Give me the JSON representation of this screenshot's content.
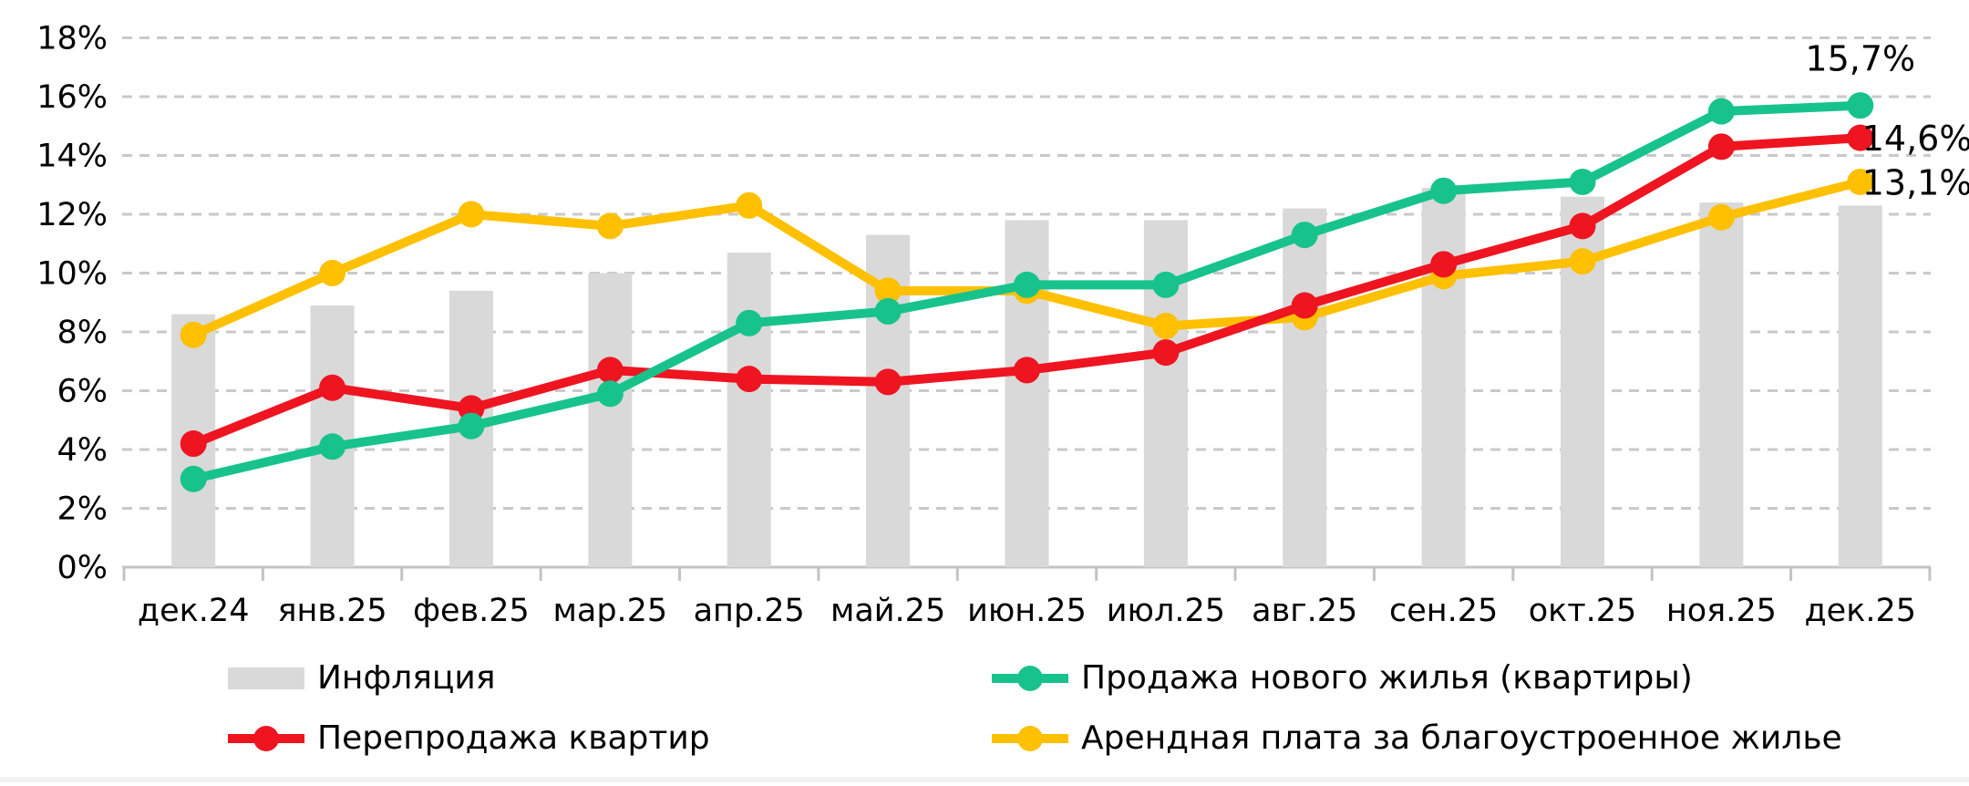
{
  "chart_data": {
    "type": "combo-bar-line",
    "title": "",
    "xlabel": "",
    "ylabel": "",
    "categories": [
      "дек.24",
      "янв.25",
      "фев.25",
      "мар.25",
      "апр.25",
      "май.25",
      "июн.25",
      "июл.25",
      "авг.25",
      "сен.25",
      "окт.25",
      "ноя.25",
      "дек.25"
    ],
    "y_axis": {
      "min": 0,
      "max": 18,
      "step": 2,
      "tick_labels": [
        "0%",
        "2%",
        "4%",
        "6%",
        "8%",
        "10%",
        "12%",
        "14%",
        "16%",
        "18%"
      ],
      "grid": "horizontal dashed light-gray"
    },
    "series": [
      {
        "key": "inflation",
        "name": "Инфляция",
        "type": "bar",
        "color": "#d9d9d9",
        "values": [
          8.6,
          8.9,
          9.4,
          10.0,
          10.7,
          11.3,
          11.8,
          11.8,
          12.2,
          12.9,
          12.6,
          12.4,
          12.3
        ]
      },
      {
        "key": "rent",
        "name": "Арендная плата за благоустроенное жилье",
        "type": "line",
        "color": "#ffc000",
        "values": [
          7.9,
          10.0,
          12.0,
          11.6,
          12.3,
          9.4,
          9.4,
          8.2,
          8.5,
          9.9,
          10.4,
          11.9,
          13.1
        ]
      },
      {
        "key": "resale",
        "name": "Перепродажа квартир",
        "type": "line",
        "color": "#ee1521",
        "values": [
          4.2,
          6.1,
          5.4,
          6.7,
          6.4,
          6.3,
          6.7,
          7.3,
          8.9,
          10.3,
          11.6,
          14.3,
          14.6
        ]
      },
      {
        "key": "new-housing",
        "name": "Продажа нового жилья (квартиры)",
        "type": "line",
        "color": "#17c38b",
        "values": [
          3.0,
          4.1,
          4.8,
          5.9,
          8.3,
          8.7,
          9.6,
          9.6,
          11.3,
          12.8,
          13.1,
          15.5,
          15.7
        ]
      }
    ],
    "end_labels": [
      {
        "series_key": "new-housing",
        "text": "15,7%"
      },
      {
        "series_key": "resale",
        "text": "14,6%"
      },
      {
        "series_key": "rent",
        "text": "13,1%"
      }
    ],
    "legend_position": "bottom, two columns"
  },
  "legend": {
    "items": [
      {
        "key": "inflation",
        "label": "Инфляция",
        "swatch": "bar",
        "color": "#d9d9d9"
      },
      {
        "key": "resale",
        "label": "Перепродажа квартир",
        "swatch": "line-dot",
        "color": "#ee1521"
      },
      {
        "key": "new-housing",
        "label": "Продажа нового жилья (квартиры)",
        "swatch": "line-dot",
        "color": "#17c38b"
      },
      {
        "key": "rent",
        "label": "Арендная плата за благоустроенное жилье",
        "swatch": "line-dot",
        "color": "#ffc000"
      }
    ]
  },
  "colors": {
    "gridline": "#c9c9c9",
    "axis": "#c3c3c3",
    "text": "#000000",
    "background": "#ffffff",
    "bottom_strip": "#f2f2f2"
  }
}
